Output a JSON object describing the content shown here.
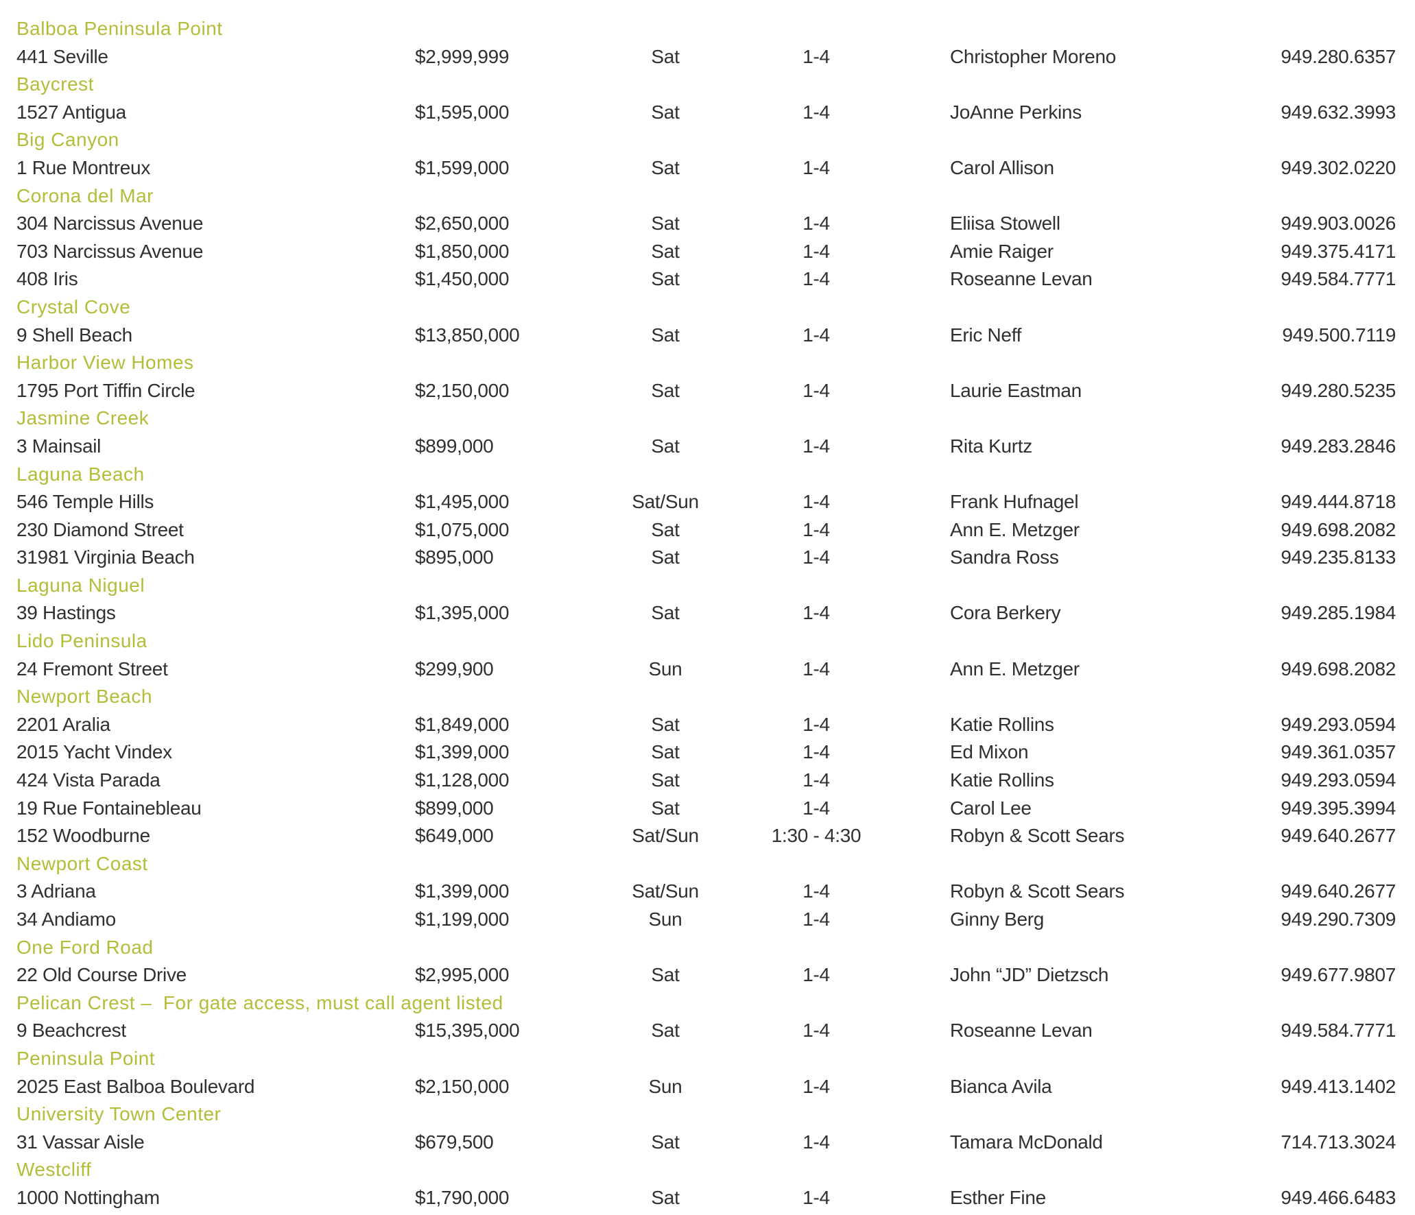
{
  "document_type": "open-house-listings",
  "colors": {
    "section_header": "#b4bd38",
    "body_text": "#303030",
    "background": "#ffffff"
  },
  "columns": [
    "address",
    "price",
    "day",
    "time",
    "agent",
    "phone"
  ],
  "sections": [
    {
      "name": "Balboa Peninsula Point",
      "listings": [
        {
          "address": "441 Seville",
          "price": "$2,999,999",
          "day": "Sat",
          "time": "1-4",
          "agent": "Christopher Moreno",
          "phone": "949.280.6357"
        }
      ]
    },
    {
      "name": "Baycrest",
      "listings": [
        {
          "address": "1527 Antigua",
          "price": "$1,595,000",
          "day": "Sat",
          "time": "1-4",
          "agent": "JoAnne Perkins",
          "phone": "949.632.3993"
        }
      ]
    },
    {
      "name": "Big Canyon",
      "listings": [
        {
          "address": "1 Rue Montreux",
          "price": "$1,599,000",
          "day": "Sat",
          "time": "1-4",
          "agent": "Carol Allison",
          "phone": "949.302.0220"
        }
      ]
    },
    {
      "name": "Corona del Mar",
      "listings": [
        {
          "address": "304 Narcissus Avenue",
          "price": "$2,650,000",
          "day": "Sat",
          "time": "1-4",
          "agent": "Eliisa Stowell",
          "phone": "949.903.0026"
        },
        {
          "address": "703 Narcissus Avenue",
          "price": "$1,850,000",
          "day": "Sat",
          "time": "1-4",
          "agent": "Amie Raiger",
          "phone": "949.375.4171"
        },
        {
          "address": "408 Iris",
          "price": "$1,450,000",
          "day": "Sat",
          "time": "1-4",
          "agent": "Roseanne Levan",
          "phone": "949.584.7771"
        }
      ]
    },
    {
      "name": "Crystal Cove",
      "listings": [
        {
          "address": "9 Shell Beach",
          "price": "$13,850,000",
          "day": "Sat",
          "time": "1-4",
          "agent": "Eric Neff",
          "phone": "949.500.7119"
        }
      ]
    },
    {
      "name": "Harbor View Homes",
      "listings": [
        {
          "address": "1795 Port Tiffin Circle",
          "price": "$2,150,000",
          "day": "Sat",
          "time": "1-4",
          "agent": "Laurie Eastman",
          "phone": "949.280.5235"
        }
      ]
    },
    {
      "name": "Jasmine Creek",
      "listings": [
        {
          "address": "3 Mainsail",
          "price": "$899,000",
          "day": "Sat",
          "time": "1-4",
          "agent": "Rita Kurtz",
          "phone": "949.283.2846"
        }
      ]
    },
    {
      "name": "Laguna Beach",
      "listings": [
        {
          "address": "546 Temple Hills",
          "price": "$1,495,000",
          "day": "Sat/Sun",
          "time": "1-4",
          "agent": "Frank Hufnagel",
          "phone": "949.444.8718"
        },
        {
          "address": "230 Diamond Street",
          "price": "$1,075,000",
          "day": "Sat",
          "time": "1-4",
          "agent": "Ann E. Metzger",
          "phone": "949.698.2082"
        },
        {
          "address": "31981 Virginia Beach",
          "price": "$895,000",
          "day": "Sat",
          "time": "1-4",
          "agent": "Sandra Ross",
          "phone": "949.235.8133"
        }
      ]
    },
    {
      "name": "Laguna Niguel",
      "listings": [
        {
          "address": "39 Hastings",
          "price": "$1,395,000",
          "day": "Sat",
          "time": "1-4",
          "agent": "Cora Berkery",
          "phone": "949.285.1984"
        }
      ]
    },
    {
      "name": "Lido Peninsula",
      "listings": [
        {
          "address": "24 Fremont Street",
          "price": "$299,900",
          "day": "Sun",
          "time": "1-4",
          "agent": "Ann E. Metzger",
          "phone": "949.698.2082"
        }
      ]
    },
    {
      "name": "Newport Beach",
      "listings": [
        {
          "address": "2201 Aralia",
          "price": "$1,849,000",
          "day": "Sat",
          "time": "1-4",
          "agent": "Katie Rollins",
          "phone": "949.293.0594"
        },
        {
          "address": "2015 Yacht Vindex",
          "price": "$1,399,000",
          "day": "Sat",
          "time": "1-4",
          "agent": "Ed Mixon",
          "phone": "949.361.0357"
        },
        {
          "address": "424 Vista Parada",
          "price": "$1,128,000",
          "day": "Sat",
          "time": "1-4",
          "agent": "Katie Rollins",
          "phone": "949.293.0594"
        },
        {
          "address": "19 Rue Fontainebleau",
          "price": "$899,000",
          "day": "Sat",
          "time": "1-4",
          "agent": "Carol Lee",
          "phone": "949.395.3994"
        },
        {
          "address": "152 Woodburne",
          "price": "$649,000",
          "day": "Sat/Sun",
          "time": "1:30 - 4:30",
          "agent": "Robyn & Scott Sears",
          "phone": "949.640.2677"
        }
      ]
    },
    {
      "name": "Newport Coast",
      "listings": [
        {
          "address": "3 Adriana",
          "price": "$1,399,000",
          "day": "Sat/Sun",
          "time": "1-4",
          "agent": "Robyn & Scott Sears",
          "phone": "949.640.2677"
        },
        {
          "address": "34 Andiamo",
          "price": "$1,199,000",
          "day": "Sun",
          "time": "1-4",
          "agent": "Ginny Berg",
          "phone": "949.290.7309"
        }
      ]
    },
    {
      "name": "One Ford Road",
      "listings": [
        {
          "address": "22 Old Course Drive",
          "price": "$2,995,000",
          "day": "Sat",
          "time": "1-4",
          "agent": "John “JD” Dietzsch",
          "phone": "949.677.9807"
        }
      ]
    },
    {
      "name": "Pelican Crest –  For gate access, must call agent listed",
      "listings": [
        {
          "address": "9 Beachcrest",
          "price": "$15,395,000",
          "day": "Sat",
          "time": "1-4",
          "agent": "Roseanne Levan",
          "phone": "949.584.7771"
        }
      ]
    },
    {
      "name": "Peninsula Point",
      "listings": [
        {
          "address": "2025 East Balboa Boulevard",
          "price": "$2,150,000",
          "day": "Sun",
          "time": "1-4",
          "agent": "Bianca Avila",
          "phone": "949.413.1402"
        }
      ]
    },
    {
      "name": "University Town Center",
      "listings": [
        {
          "address": "31 Vassar Aisle",
          "price": "$679,500",
          "day": "Sat",
          "time": "1-4",
          "agent": "Tamara McDonald",
          "phone": "714.713.3024"
        }
      ]
    },
    {
      "name": "Westcliff",
      "listings": [
        {
          "address": "1000 Nottingham",
          "price": "$1,790,000",
          "day": "Sat",
          "time": "1-4",
          "agent": "Esther Fine",
          "phone": "949.466.6483"
        }
      ]
    }
  ]
}
